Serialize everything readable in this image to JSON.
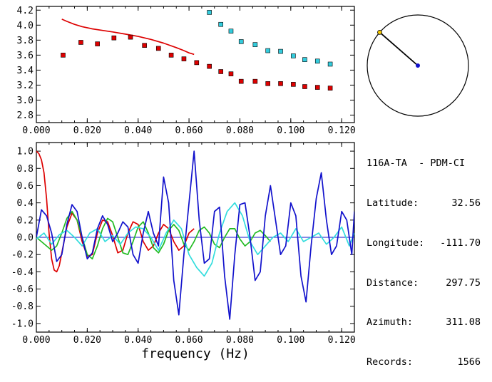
{
  "info": {
    "station": "116A-TA  - PDM-CI",
    "rows": [
      {
        "label": "Latitude:",
        "value": "32.56"
      },
      {
        "label": "Longitude:",
        "value": "-111.70"
      },
      {
        "label": "Distance:",
        "value": "297.75"
      },
      {
        "label": "Azimuth:",
        "value": "311.08"
      },
      {
        "label": "Records:",
        "value": "1566"
      }
    ]
  },
  "chart_data": [
    {
      "type": "scatter",
      "xlabel": "",
      "ylabel": "",
      "xlim": [
        0.0,
        0.125
      ],
      "ylim": [
        2.7,
        4.25
      ],
      "xticks": [
        "0.000",
        "0.020",
        "0.040",
        "0.060",
        "0.080",
        "0.100",
        "0.120"
      ],
      "yticks": [
        "2.8",
        "3.0",
        "3.2",
        "3.4",
        "3.6",
        "3.8",
        "4.0",
        "4.2"
      ],
      "series": [
        {
          "color": "#dd0000",
          "style": "line",
          "x": [
            0.01,
            0.012,
            0.015,
            0.018,
            0.022,
            0.026,
            0.03,
            0.035,
            0.04,
            0.045,
            0.05,
            0.055,
            0.058,
            0.06,
            0.062
          ],
          "y": [
            4.08,
            4.05,
            4.01,
            3.98,
            3.95,
            3.93,
            3.91,
            3.88,
            3.85,
            3.81,
            3.76,
            3.7,
            3.66,
            3.63,
            3.61
          ]
        },
        {
          "color": "#dd0000",
          "style": "square",
          "x": [
            0.0105,
            0.0175,
            0.024,
            0.0305,
            0.037,
            0.0425,
            0.048,
            0.053,
            0.058,
            0.063,
            0.068,
            0.0725,
            0.0765,
            0.0805,
            0.086,
            0.091,
            0.096,
            0.101,
            0.1055,
            0.1105,
            0.1155
          ],
          "y": [
            3.6,
            3.77,
            3.75,
            3.83,
            3.84,
            3.73,
            3.69,
            3.6,
            3.55,
            3.5,
            3.45,
            3.38,
            3.35,
            3.25,
            3.25,
            3.22,
            3.22,
            3.21,
            3.18,
            3.17,
            3.16
          ]
        },
        {
          "color": "#33ccdd",
          "style": "square",
          "x": [
            0.068,
            0.0725,
            0.0765,
            0.0805,
            0.086,
            0.091,
            0.096,
            0.101,
            0.1055,
            0.1105,
            0.1155
          ],
          "y": [
            4.17,
            4.01,
            3.92,
            3.78,
            3.74,
            3.66,
            3.65,
            3.59,
            3.54,
            3.52,
            3.48
          ]
        }
      ]
    },
    {
      "type": "line",
      "xlabel": "frequency (Hz)",
      "ylabel": "",
      "xlim": [
        0.0,
        0.125
      ],
      "ylim": [
        -1.1,
        1.1
      ],
      "xticks": [
        "0.000",
        "0.020",
        "0.040",
        "0.060",
        "0.080",
        "0.100",
        "0.120"
      ],
      "yticks": [
        "1.0",
        "0.8",
        "0.6",
        "0.4",
        "0.2",
        "0.0",
        "-0.2",
        "-0.4",
        "-0.6",
        "-0.8",
        "-1.0"
      ],
      "series": [
        {
          "color": "#dd0000",
          "x": [
            0.0,
            0.001,
            0.002,
            0.003,
            0.004,
            0.005,
            0.006,
            0.007,
            0.008,
            0.009,
            0.01,
            0.012,
            0.014,
            0.016,
            0.018,
            0.02,
            0.022,
            0.024,
            0.026,
            0.028,
            0.03,
            0.032,
            0.034,
            0.036,
            0.038,
            0.04,
            0.042,
            0.044,
            0.046,
            0.048,
            0.05,
            0.052,
            0.054,
            0.056,
            0.058,
            0.06,
            0.062
          ],
          "y": [
            1.0,
            0.97,
            0.9,
            0.75,
            0.45,
            0.05,
            -0.25,
            -0.38,
            -0.4,
            -0.33,
            -0.18,
            0.12,
            0.28,
            0.2,
            -0.05,
            -0.22,
            -0.2,
            0.05,
            0.2,
            0.18,
            0.02,
            -0.18,
            -0.15,
            0.05,
            0.18,
            0.15,
            -0.05,
            -0.15,
            -0.1,
            0.05,
            0.15,
            0.1,
            -0.05,
            -0.15,
            -0.1,
            0.05,
            0.1
          ]
        },
        {
          "color": "#22bb22",
          "x": [
            0.0,
            0.002,
            0.004,
            0.006,
            0.008,
            0.01,
            0.012,
            0.014,
            0.016,
            0.018,
            0.02,
            0.022,
            0.024,
            0.026,
            0.028,
            0.03,
            0.032,
            0.034,
            0.036,
            0.038,
            0.04,
            0.042,
            0.044,
            0.046,
            0.048,
            0.05,
            0.052,
            0.054,
            0.056,
            0.058,
            0.06,
            0.062,
            0.064,
            0.066,
            0.068,
            0.07,
            0.072,
            0.074,
            0.076,
            0.078,
            0.08,
            0.082,
            0.084,
            0.086,
            0.088,
            0.09,
            0.092
          ],
          "y": [
            0.0,
            -0.05,
            -0.1,
            -0.15,
            -0.1,
            0.05,
            0.22,
            0.3,
            0.2,
            0.0,
            -0.2,
            -0.25,
            -0.1,
            0.1,
            0.22,
            0.18,
            0.0,
            -0.18,
            -0.2,
            -0.05,
            0.12,
            0.18,
            0.05,
            -0.12,
            -0.18,
            -0.08,
            0.08,
            0.15,
            0.08,
            -0.08,
            -0.15,
            -0.05,
            0.08,
            0.12,
            0.05,
            -0.08,
            -0.12,
            0.0,
            0.1,
            0.1,
            -0.02,
            -0.1,
            -0.05,
            0.05,
            0.08,
            0.02,
            -0.05
          ]
        },
        {
          "color": "#33dddd",
          "x": [
            0.0,
            0.003,
            0.006,
            0.009,
            0.012,
            0.015,
            0.018,
            0.021,
            0.024,
            0.027,
            0.03,
            0.033,
            0.036,
            0.039,
            0.042,
            0.045,
            0.048,
            0.051,
            0.054,
            0.057,
            0.06,
            0.063,
            0.066,
            0.069,
            0.072,
            0.075,
            0.078,
            0.081,
            0.084,
            0.087,
            0.09,
            0.093,
            0.096,
            0.099,
            0.102,
            0.105,
            0.108,
            0.111,
            0.114,
            0.117,
            0.12,
            0.123,
            0.125
          ],
          "y": [
            -0.02,
            0.05,
            -0.08,
            0.03,
            0.08,
            0.0,
            -0.1,
            0.05,
            0.1,
            -0.05,
            0.02,
            -0.08,
            0.05,
            0.12,
            0.1,
            0.0,
            -0.15,
            0.05,
            0.2,
            0.1,
            -0.2,
            -0.35,
            -0.45,
            -0.3,
            0.05,
            0.3,
            0.4,
            0.25,
            -0.05,
            -0.2,
            -0.1,
            0.0,
            0.05,
            -0.05,
            0.1,
            -0.05,
            0.0,
            0.05,
            -0.08,
            0.0,
            0.12,
            -0.1,
            0.05
          ]
        },
        {
          "color": "#1111cc",
          "x": [
            0.0,
            0.002,
            0.004,
            0.006,
            0.008,
            0.01,
            0.012,
            0.014,
            0.016,
            0.018,
            0.02,
            0.022,
            0.024,
            0.026,
            0.028,
            0.03,
            0.032,
            0.034,
            0.036,
            0.038,
            0.04,
            0.042,
            0.044,
            0.046,
            0.048,
            0.05,
            0.052,
            0.054,
            0.056,
            0.058,
            0.06,
            0.062,
            0.064,
            0.066,
            0.068,
            0.07,
            0.072,
            0.074,
            0.076,
            0.078,
            0.08,
            0.082,
            0.084,
            0.086,
            0.088,
            0.09,
            0.092,
            0.094,
            0.096,
            0.098,
            0.1,
            0.102,
            0.104,
            0.106,
            0.108,
            0.11,
            0.112,
            0.114,
            0.116,
            0.118,
            0.12,
            0.122,
            0.124,
            0.125
          ],
          "y": [
            0.0,
            0.32,
            0.25,
            0.05,
            -0.28,
            -0.2,
            0.15,
            0.38,
            0.3,
            0.0,
            -0.25,
            -0.18,
            0.1,
            0.25,
            0.15,
            -0.05,
            0.05,
            0.18,
            0.12,
            -0.2,
            -0.3,
            0.05,
            0.3,
            0.05,
            -0.1,
            0.7,
            0.4,
            -0.5,
            -0.9,
            -0.2,
            0.4,
            1.0,
            0.2,
            -0.3,
            -0.25,
            0.3,
            0.35,
            -0.45,
            -0.95,
            -0.2,
            0.38,
            0.4,
            0.0,
            -0.5,
            -0.4,
            0.25,
            0.6,
            0.2,
            -0.2,
            -0.1,
            0.4,
            0.25,
            -0.45,
            -0.75,
            -0.1,
            0.45,
            0.75,
            0.2,
            -0.2,
            -0.1,
            0.3,
            0.2,
            -0.2,
            0.3
          ]
        }
      ]
    }
  ],
  "inset": {
    "type": "azimuth-dial",
    "azimuth_deg": 311.08,
    "needle_color": "#000000",
    "tip_color": "#f5c800",
    "center_color": "#1111cc"
  }
}
